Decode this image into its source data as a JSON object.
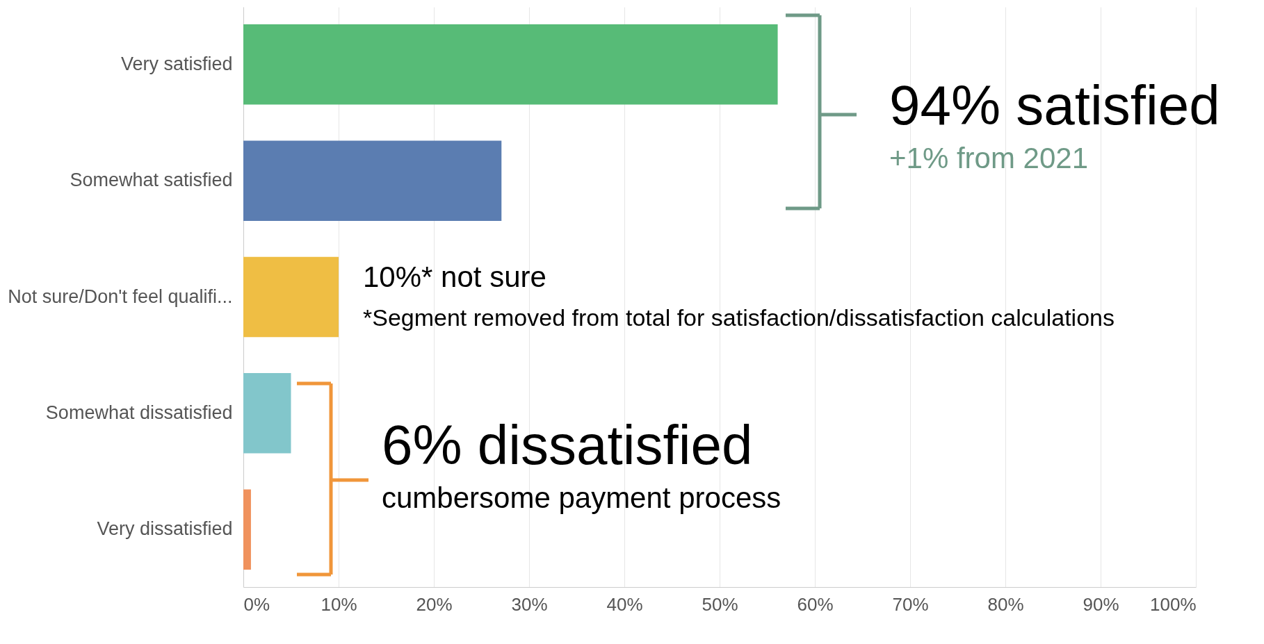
{
  "chart_data": {
    "type": "bar",
    "orientation": "horizontal",
    "categories": [
      "Very satisfied",
      "Somewhat satisfied",
      "Not sure/Don't feel qualifi...",
      "Somewhat dissatisfied",
      "Very dissatisfied"
    ],
    "values": [
      56.1,
      27.1,
      10.0,
      5.0,
      0.8
    ],
    "colors": [
      "#57bb77",
      "#5b7db1",
      "#efbe44",
      "#82c6cb",
      "#f0925d"
    ],
    "xlim": [
      0,
      100
    ],
    "xticks": [
      {
        "value": 0,
        "label": "0%"
      },
      {
        "value": 10,
        "label": "10%"
      },
      {
        "value": 20,
        "label": "20%"
      },
      {
        "value": 30,
        "label": "30%"
      },
      {
        "value": 40,
        "label": "40%"
      },
      {
        "value": 50,
        "label": "50%"
      },
      {
        "value": 60,
        "label": "60%"
      },
      {
        "value": 70,
        "label": "70%"
      },
      {
        "value": 80,
        "label": "80%"
      },
      {
        "value": 90,
        "label": "90%"
      },
      {
        "value": 100,
        "label": "100%"
      }
    ],
    "grid": "x",
    "annotations": [
      "94% satisfied",
      "+1% from 2021",
      "10%* not sure",
      "*Segment removed from total for satisfaction/dissatisfaction calculations",
      "6% dissatisfied",
      "cumbersome payment process"
    ]
  }
}
